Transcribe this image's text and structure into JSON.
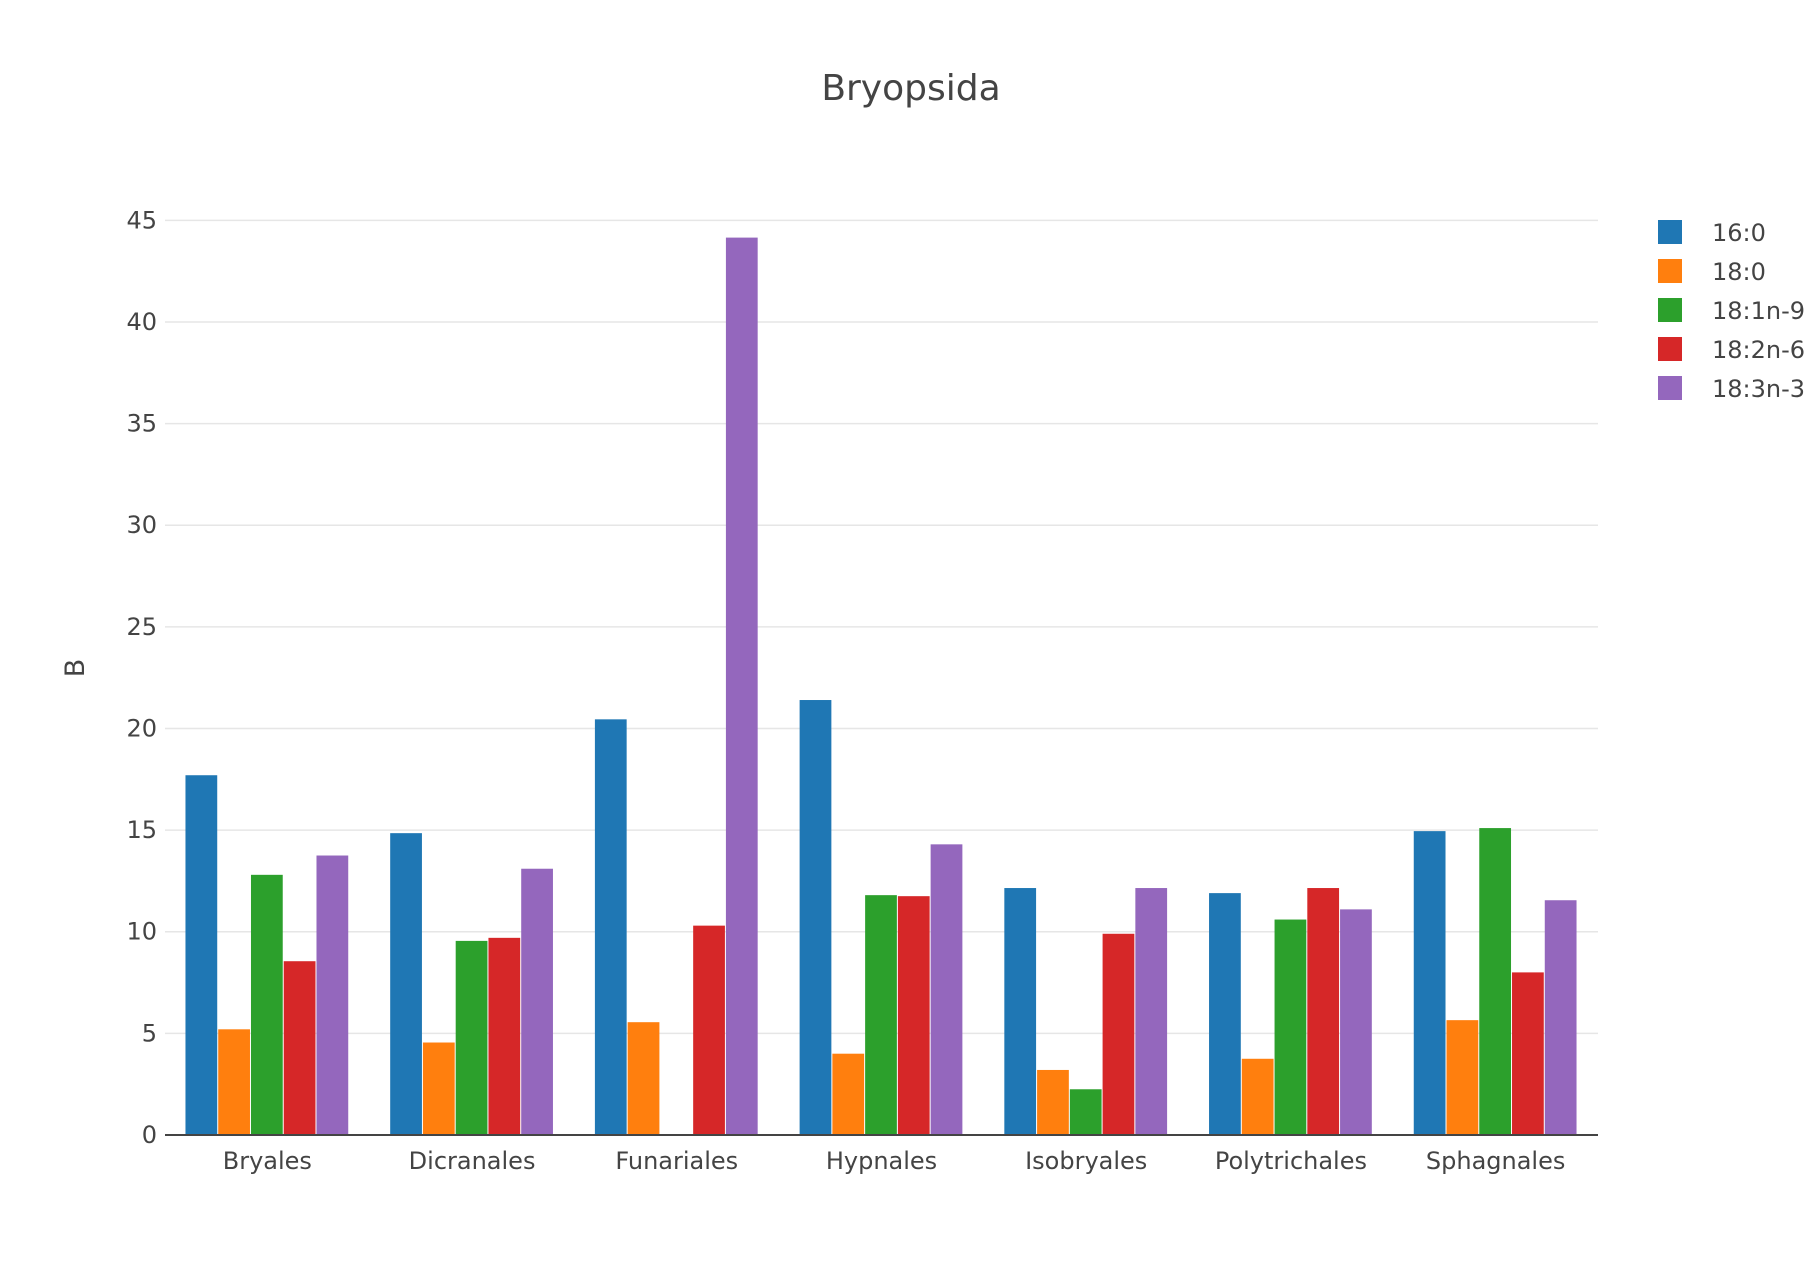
{
  "chart_data": {
    "type": "bar",
    "title": "Bryopsida",
    "xlabel": "",
    "ylabel": "B",
    "ylim": [
      0,
      46
    ],
    "yticks": [
      0,
      5,
      10,
      15,
      20,
      25,
      30,
      35,
      40,
      45
    ],
    "grid": true,
    "legend_position": "top-right",
    "categories": [
      "Bryales",
      "Dicranales",
      "Funariales",
      "Hypnales",
      "Isobryales",
      "Polytrichales",
      "Sphagnales"
    ],
    "series": [
      {
        "name": "16:0",
        "color": "#1f77b4",
        "values": [
          17.7,
          14.85,
          20.45,
          21.4,
          12.15,
          11.9,
          14.95
        ]
      },
      {
        "name": "18:0",
        "color": "#ff7f0e",
        "values": [
          5.2,
          4.55,
          5.55,
          4.0,
          3.2,
          3.75,
          5.65
        ]
      },
      {
        "name": "18:1n-9",
        "color": "#2ca02c",
        "values": [
          12.8,
          9.55,
          0,
          11.8,
          2.25,
          10.6,
          15.1
        ]
      },
      {
        "name": "18:2n-6",
        "color": "#d62728",
        "values": [
          8.55,
          9.7,
          10.3,
          11.75,
          9.9,
          12.15,
          8.0
        ]
      },
      {
        "name": "18:3n-3",
        "color": "#9467bd",
        "values": [
          13.75,
          13.1,
          44.15,
          14.3,
          12.15,
          11.1,
          11.55
        ]
      }
    ]
  }
}
